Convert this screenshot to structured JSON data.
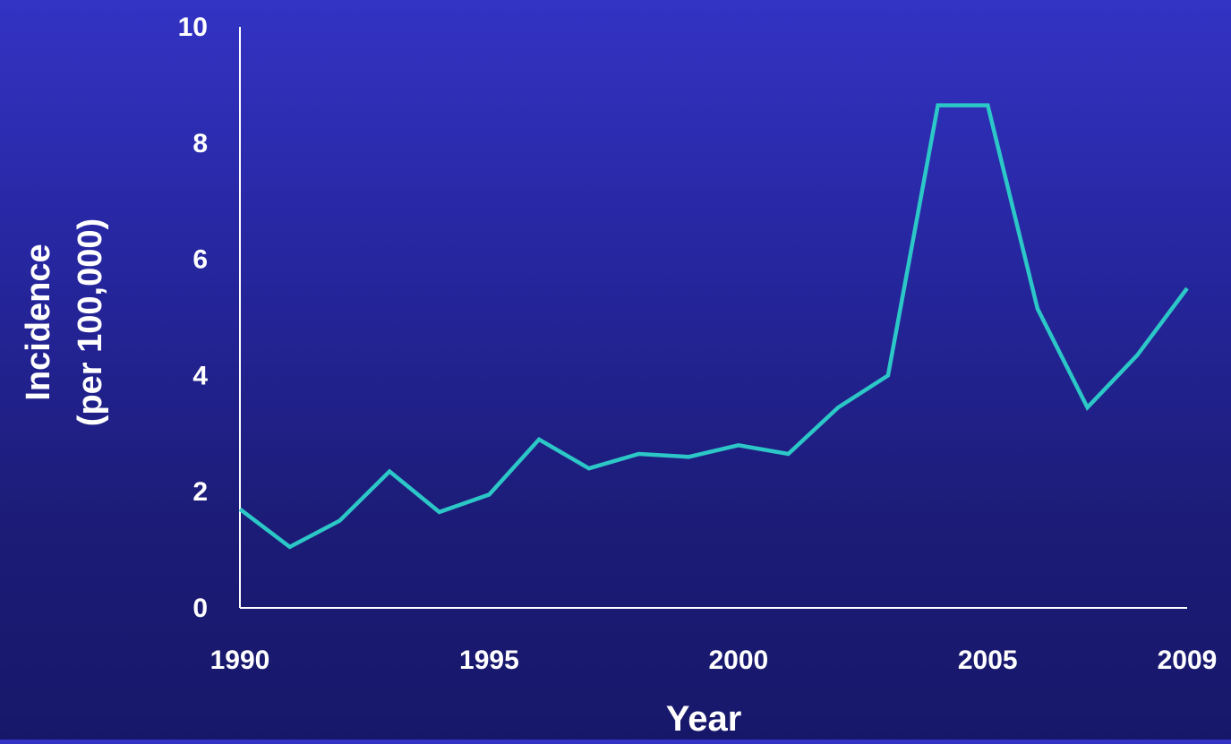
{
  "chart_data": {
    "type": "line",
    "title": "",
    "xlabel": "Year",
    "ylabel_line1": "Incidence",
    "ylabel_line2": "(per 100,000)",
    "xlim": [
      1990,
      2009
    ],
    "ylim": [
      0,
      10
    ],
    "x_ticks": [
      1990,
      1995,
      2000,
      2005,
      2009
    ],
    "x_tick_labels": [
      "1990",
      "1995",
      "2000",
      "2005",
      "2009"
    ],
    "y_ticks": [
      0,
      2,
      4,
      6,
      8,
      10
    ],
    "y_tick_labels": [
      "0",
      "2",
      "4",
      "6",
      "8",
      "10"
    ],
    "grid": false,
    "legend": "none",
    "line_color": "#2cc7c7",
    "axis_color": "#ffffff",
    "series": [
      {
        "x": [
          1990,
          1991,
          1992,
          1993,
          1994,
          1995,
          1996,
          1997,
          1998,
          1999,
          2000,
          2001,
          2002,
          2003,
          2004,
          2005,
          2006,
          2007,
          2008,
          2009
        ],
        "values": [
          1.7,
          1.05,
          1.5,
          2.35,
          1.65,
          1.95,
          2.9,
          2.4,
          2.65,
          2.6,
          2.8,
          2.65,
          3.45,
          4.0,
          8.65,
          8.65,
          5.15,
          3.45,
          4.35,
          5.5
        ]
      }
    ]
  }
}
